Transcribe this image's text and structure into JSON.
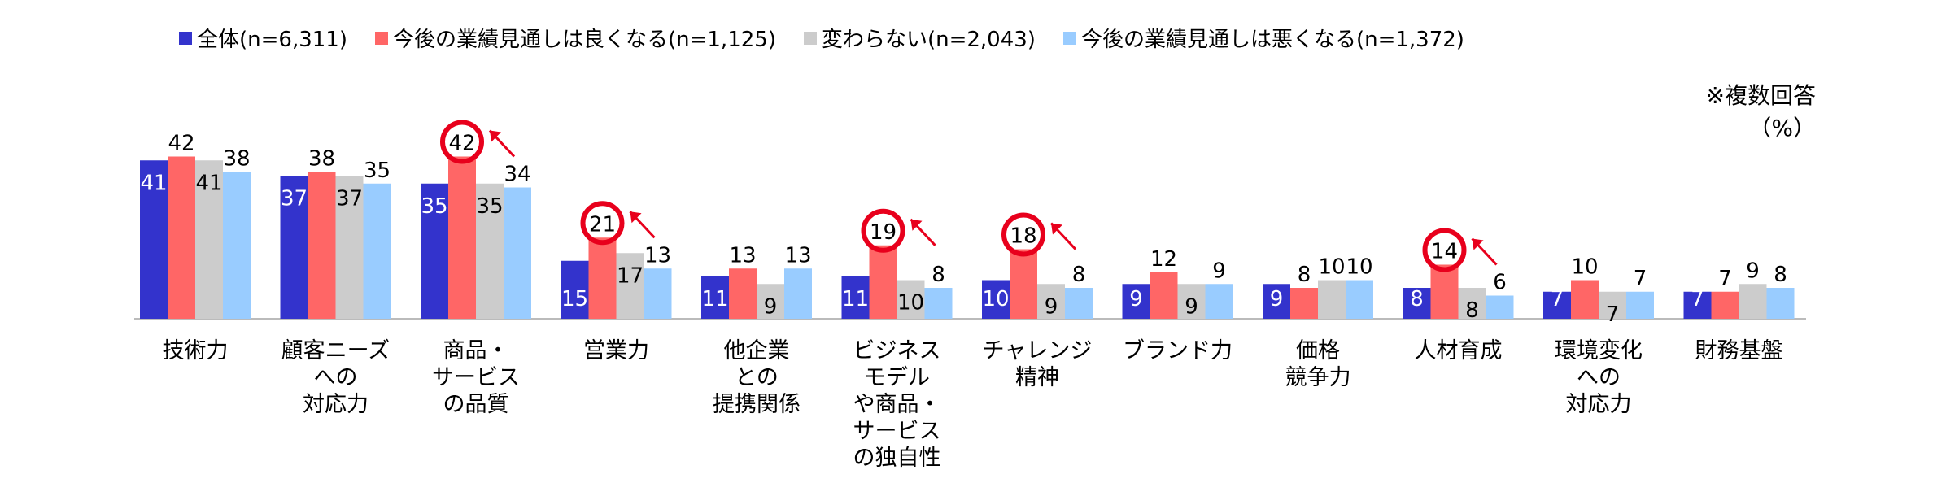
{
  "legend": {
    "items": [
      {
        "label": "全体(n=6,311)",
        "color": "#3333CC"
      },
      {
        "label": "今後の業績見通しは良くなる(n=1,125)",
        "color": "#FF6666"
      },
      {
        "label": "変わらない(n=2,043)",
        "color": "#CCCCCC"
      },
      {
        "label": "今後の業績見通しは悪くなる(n=1,372)",
        "color": "#99CCFF"
      }
    ]
  },
  "notes": {
    "multiple_answers": "※複数回答",
    "unit": "（%）"
  },
  "chart_data": {
    "type": "bar",
    "categories": [
      "技術力",
      "顧客ニーズ\nへの\n対応力",
      "商品・\nサービス\nの品質",
      "営業力",
      "他企業\nとの\n提携関係",
      "ビジネス\nモデル\nや商品・\nサービス\nの独自性",
      "チャレンジ\n精神",
      "ブランド力",
      "価格\n競争力",
      "人材育成",
      "環境変化\nへの\n対応力",
      "財務基盤"
    ],
    "series": [
      {
        "name": "全体(n=6,311)",
        "color": "#3333CC",
        "values": [
          41,
          37,
          35,
          15,
          11,
          11,
          10,
          9,
          9,
          8,
          7,
          7
        ]
      },
      {
        "name": "今後の業績見通しは良くなる(n=1,125)",
        "color": "#FF6666",
        "values": [
          42,
          38,
          42,
          21,
          13,
          19,
          18,
          12,
          8,
          14,
          10,
          7
        ]
      },
      {
        "name": "変わらない(n=2,043)",
        "color": "#CCCCCC",
        "values": [
          41,
          37,
          35,
          17,
          9,
          10,
          9,
          9,
          10,
          8,
          7,
          9
        ]
      },
      {
        "name": "今後の業績見通しは悪くなる(n=1,372)",
        "color": "#99CCFF",
        "values": [
          38,
          35,
          34,
          13,
          13,
          8,
          8,
          9,
          10,
          6,
          7,
          8
        ]
      }
    ],
    "highlighted_categories": [
      2,
      3,
      5,
      6,
      9
    ],
    "highlight_color": "#E8001C",
    "ylim": [
      0,
      45
    ],
    "grid": false,
    "legend_position": "top"
  }
}
